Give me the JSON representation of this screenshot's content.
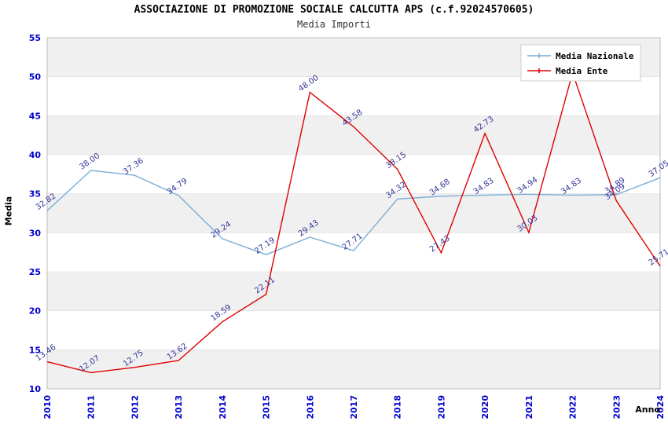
{
  "chart_data": {
    "type": "line",
    "title": "ASSOCIAZIONE DI PROMOZIONE SOCIALE CALCUTTA APS (c.f.92024570605)",
    "subtitle": "Media Importi",
    "xlabel": "Anno",
    "ylabel": "Media",
    "ylim": [
      10,
      55
    ],
    "ytick": 5,
    "grid": "alternating-bands",
    "legend_position": "top-right",
    "categories": [
      "2010",
      "2011",
      "2012",
      "2013",
      "2014",
      "2015",
      "2016",
      "2017",
      "2018",
      "2019",
      "2020",
      "2021",
      "2022",
      "2023",
      "2024"
    ],
    "series": [
      {
        "name": "Media Nazionale",
        "color": "#7aaed6",
        "values": [
          32.82,
          38.0,
          37.36,
          34.79,
          29.24,
          27.19,
          29.43,
          27.71,
          34.32,
          34.68,
          34.83,
          34.94,
          34.83,
          34.89,
          37.05
        ],
        "labels": [
          "32.82",
          "38.00",
          "37.36",
          "34.79",
          "29.24",
          "27.19",
          "29.43",
          "27.71",
          "34.32",
          "34.68",
          "34.83",
          "34.94",
          "34.83",
          "34.89",
          "37.05"
        ]
      },
      {
        "name": "Media Ente",
        "color": "#e00000",
        "values": [
          13.46,
          12.07,
          12.75,
          13.62,
          18.59,
          22.11,
          48.0,
          43.58,
          38.15,
          27.43,
          42.73,
          30.03,
          50.5,
          34.09,
          25.71
        ],
        "labels": [
          "13.46",
          "12.07",
          "12.75",
          "13.62",
          "18.59",
          "22.11",
          "48.00",
          "43.58",
          "38.15",
          "27.43",
          "42.73",
          "30.03",
          "50.5",
          "34.09",
          "25.71"
        ]
      }
    ],
    "colors": {
      "band": "#f0f0f0",
      "plot_border": "#bbbbbb",
      "gridline": "#dddddd",
      "tick_label": "#0000cc",
      "point_label": "#333399",
      "background": "#ffffff"
    }
  }
}
